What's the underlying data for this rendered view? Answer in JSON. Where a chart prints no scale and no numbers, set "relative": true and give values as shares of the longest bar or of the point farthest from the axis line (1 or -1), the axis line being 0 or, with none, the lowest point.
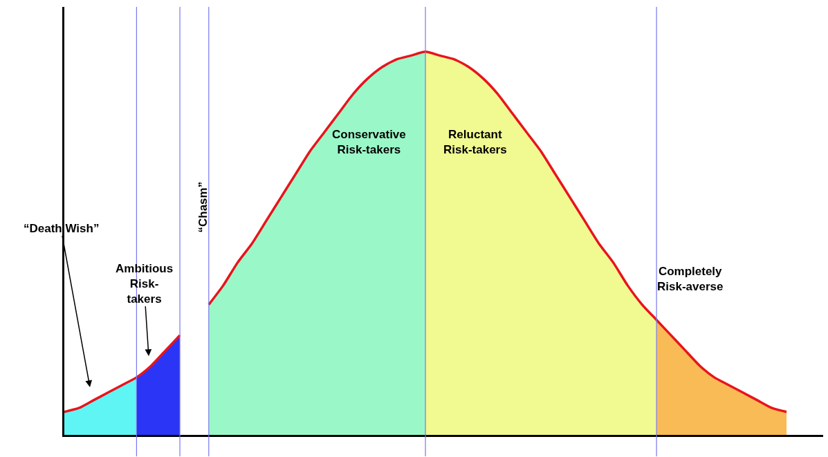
{
  "chart_data": {
    "type": "area",
    "relative": true,
    "tick_labels": false,
    "grid": "x",
    "categories": [
      null,
      null,
      null,
      null,
      null,
      null,
      null,
      null,
      null,
      null,
      null,
      null,
      null,
      null,
      null,
      null,
      null,
      null,
      null,
      null,
      null,
      null,
      null,
      null,
      null,
      null,
      null,
      null,
      null,
      null,
      null,
      null,
      null,
      null,
      null,
      null,
      null,
      null,
      null,
      null,
      null,
      null,
      null,
      null,
      null,
      null,
      null,
      null,
      null,
      null,
      null
    ],
    "series": [
      {
        "color": "#5ff5f5",
        "values": [
          0.06,
          0.07,
          0.09,
          0.11,
          0.13,
          0.15,
          null,
          null,
          null,
          null,
          null,
          null,
          null,
          null,
          null,
          null,
          null,
          null,
          null,
          null,
          null,
          null,
          null,
          null,
          null,
          null,
          null,
          null,
          null,
          null,
          null,
          null,
          null,
          null,
          null,
          null,
          null,
          null,
          null,
          null,
          null,
          null,
          null,
          null,
          null,
          null,
          null,
          null,
          null,
          null,
          null
        ]
      },
      {
        "color": "#2b35f5",
        "values": [
          null,
          null,
          null,
          null,
          null,
          0.15,
          0.18,
          0.22,
          0.26,
          null,
          null,
          null,
          null,
          null,
          null,
          null,
          null,
          null,
          null,
          null,
          null,
          null,
          null,
          null,
          null,
          null,
          null,
          null,
          null,
          null,
          null,
          null,
          null,
          null,
          null,
          null,
          null,
          null,
          null,
          null,
          null,
          null,
          null,
          null,
          null,
          null,
          null,
          null,
          null,
          null,
          null
        ]
      },
      {
        "color": "#9af7c8",
        "values": [
          null,
          null,
          null,
          null,
          null,
          null,
          null,
          null,
          null,
          null,
          0.34,
          0.39,
          0.45,
          0.5,
          0.56,
          0.62,
          0.68,
          0.74,
          0.79,
          0.84,
          0.89,
          0.93,
          0.96,
          0.98,
          0.99,
          1.0,
          null,
          null,
          null,
          null,
          null,
          null,
          null,
          null,
          null,
          null,
          null,
          null,
          null,
          null,
          null,
          null,
          null,
          null,
          null,
          null,
          null,
          null,
          null,
          null,
          null
        ]
      },
      {
        "color": "#f1f991",
        "values": [
          null,
          null,
          null,
          null,
          null,
          null,
          null,
          null,
          null,
          null,
          null,
          null,
          null,
          null,
          null,
          null,
          null,
          null,
          null,
          null,
          null,
          null,
          null,
          null,
          null,
          1.0,
          0.99,
          0.98,
          0.96,
          0.93,
          0.89,
          0.84,
          0.79,
          0.74,
          0.68,
          0.62,
          0.56,
          0.5,
          0.45,
          0.39,
          0.34,
          0.3,
          null,
          null,
          null,
          null,
          null,
          null,
          null,
          null,
          null
        ]
      },
      {
        "color": "#f8bb55",
        "values": [
          null,
          null,
          null,
          null,
          null,
          null,
          null,
          null,
          null,
          null,
          null,
          null,
          null,
          null,
          null,
          null,
          null,
          null,
          null,
          null,
          null,
          null,
          null,
          null,
          null,
          null,
          null,
          null,
          null,
          null,
          null,
          null,
          null,
          null,
          null,
          null,
          null,
          null,
          null,
          null,
          null,
          0.3,
          0.26,
          0.22,
          0.18,
          0.15,
          0.13,
          0.11,
          0.09,
          0.07,
          0.06
        ]
      },
      {
        "type": "line",
        "color": "#e8141c",
        "values": [
          0.06,
          0.07,
          0.09,
          0.11,
          0.13,
          0.15,
          0.18,
          0.22,
          0.26,
          null,
          0.34,
          0.39,
          0.45,
          0.5,
          0.56,
          0.62,
          0.68,
          0.74,
          0.79,
          0.84,
          0.89,
          0.93,
          0.96,
          0.98,
          0.99,
          1.0,
          0.99,
          0.98,
          0.96,
          0.93,
          0.89,
          0.84,
          0.79,
          0.74,
          0.68,
          0.62,
          0.56,
          0.5,
          0.45,
          0.39,
          0.34,
          0.3,
          0.26,
          0.22,
          0.18,
          0.15,
          0.13,
          0.11,
          0.09,
          0.07,
          0.06
        ]
      }
    ],
    "annotations": [
      "“Death Wish”",
      "Ambitious\nRisk-\ntakers",
      "“Chasm”",
      "Conservative\nRisk-takers",
      "Reluctant\nRisk-takers",
      "Completely\nRisk-averse"
    ]
  }
}
